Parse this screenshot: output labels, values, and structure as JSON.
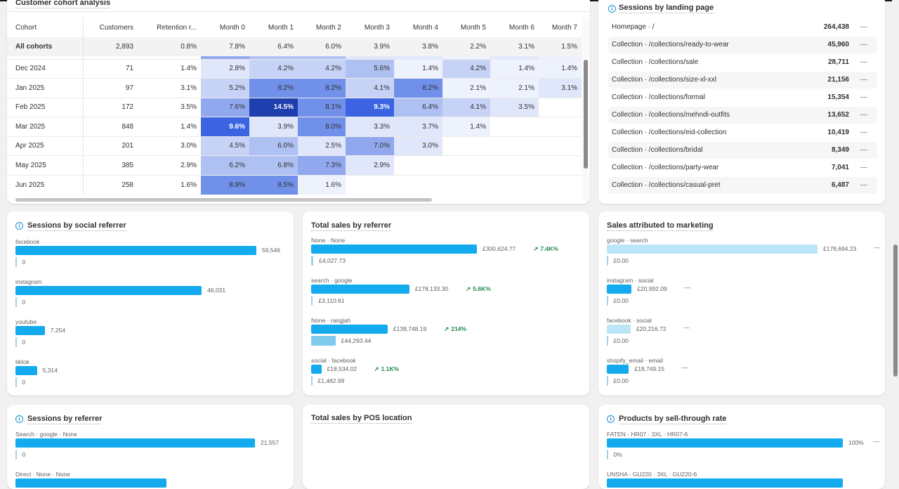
{
  "colors": {
    "bar": "#13aaee",
    "bar_light": "#bde5f8",
    "compare": "#7fcbee",
    "trend_up": "#1f8a4c",
    "heat_max": "#1e3fae"
  },
  "cohort": {
    "title": "Customer cohort analysis",
    "headers": [
      "Cohort",
      "Customers",
      "Retention r...",
      "Month 0",
      "Month 1",
      "Month 2",
      "Month 3",
      "Month 4",
      "Month 5",
      "Month 6",
      "Month 7"
    ],
    "all": [
      "All cohorts",
      "2,893",
      "0.8%",
      "7.8%",
      "6.4%",
      "6.0%",
      "3.9%",
      "3.8%",
      "2.2%",
      "3.1%",
      "1.5%"
    ],
    "rows": [
      [
        "Dec 2024",
        "71",
        "1.4%",
        "2.8%",
        "4.2%",
        "4.2%",
        "5.6%",
        "1.4%",
        "4.2%",
        "1.4%",
        "1.4%"
      ],
      [
        "Jan 2025",
        "97",
        "3.1%",
        "5.2%",
        "8.2%",
        "8.2%",
        "4.1%",
        "8.2%",
        "2.1%",
        "2.1%",
        "3.1%"
      ],
      [
        "Feb 2025",
        "172",
        "3.5%",
        "7.6%",
        "14.5%",
        "8.1%",
        "9.3%",
        "6.4%",
        "4.1%",
        "3.5%",
        ""
      ],
      [
        "Mar 2025",
        "848",
        "1.4%",
        "9.6%",
        "3.9%",
        "8.0%",
        "3.3%",
        "3.7%",
        "1.4%",
        "",
        ""
      ],
      [
        "Apr 2025",
        "201",
        "3.0%",
        "4.5%",
        "6.0%",
        "2.5%",
        "7.0%",
        "3.0%",
        "",
        "",
        ""
      ],
      [
        "May 2025",
        "385",
        "2.9%",
        "6.2%",
        "6.8%",
        "7.3%",
        "2.9%",
        "",
        "",
        "",
        ""
      ],
      [
        "Jun 2025",
        "258",
        "1.6%",
        "8.9%",
        "8.5%",
        "1.6%",
        "",
        "",
        "",
        "",
        ""
      ]
    ]
  },
  "landing": {
    "title": "Sessions by landing page",
    "rows": [
      {
        "label": "Homepage · /",
        "value": "264,438",
        "change": "—"
      },
      {
        "label": "Collection · /collections/ready-to-wear",
        "value": "45,960",
        "change": "—"
      },
      {
        "label": "Collection · /collections/sale",
        "value": "28,711",
        "change": "—"
      },
      {
        "label": "Collection · /collections/size-xl-xxl",
        "value": "21,156",
        "change": "—"
      },
      {
        "label": "Collection · /collections/formal",
        "value": "15,354",
        "change": "—"
      },
      {
        "label": "Collection · /collections/mehndi-outfits",
        "value": "13,652",
        "change": "—"
      },
      {
        "label": "Collection · /collections/eid-collection",
        "value": "10,419",
        "change": "—"
      },
      {
        "label": "Collection · /collections/bridal",
        "value": "8,349",
        "change": "—"
      },
      {
        "label": "Collection · /collections/party-wear",
        "value": "7,041",
        "change": "—"
      },
      {
        "label": "Collection · /collections/casual-pret",
        "value": "6,487",
        "change": "—"
      }
    ]
  },
  "social": {
    "title": "Sessions by social referrer",
    "max": 59546,
    "items": [
      {
        "label": "facebook",
        "value": 59546,
        "value_text": "59,546",
        "compare": 0,
        "compare_text": "0"
      },
      {
        "label": "instagram",
        "value": 46031,
        "value_text": "46,031",
        "compare": 0,
        "compare_text": "0"
      },
      {
        "label": "youtube",
        "value": 7254,
        "value_text": "7,254",
        "compare": 0,
        "compare_text": "0"
      },
      {
        "label": "tiktok",
        "value": 5314,
        "value_text": "5,314",
        "compare": 0,
        "compare_text": "0"
      }
    ]
  },
  "referrer_sales": {
    "title": "Total sales by referrer",
    "max": 300624.77,
    "items": [
      {
        "label": "None · None",
        "value": 300624.77,
        "value_text": "£300,624.77",
        "compare": 4027.73,
        "compare_text": "£4,027.73",
        "trend": "7.4K%"
      },
      {
        "label": "search · google",
        "value": 178133.3,
        "value_text": "£178,133.30",
        "compare": 3110.61,
        "compare_text": "£3,110.61",
        "trend": "5.6K%"
      },
      {
        "label": "None · rangjah",
        "value": 138748.19,
        "value_text": "£138,748.19",
        "compare": 44293.44,
        "compare_text": "£44,293.44",
        "trend": "214%"
      },
      {
        "label": "social · facebook",
        "value": 18534.02,
        "value_text": "£18,534.02",
        "compare": 1482.99,
        "compare_text": "£1,482.99",
        "trend": "1.1K%"
      }
    ]
  },
  "marketing": {
    "title": "Sales attributed to marketing",
    "max": 178694.23,
    "items": [
      {
        "label": "google · search",
        "value": 178694.23,
        "value_text": "£178,694.23",
        "compare": 0,
        "compare_text": "£0.00",
        "change": "—",
        "light": true
      },
      {
        "label": "instagram · social",
        "value": 20992.09,
        "value_text": "£20,992.09",
        "compare": 0,
        "compare_text": "£0.00",
        "change": "—"
      },
      {
        "label": "facebook · social",
        "value": 20216.72,
        "value_text": "£20,216.72",
        "compare": 0,
        "compare_text": "£0.00",
        "change": "—",
        "light": true
      },
      {
        "label": "shopify_email · email",
        "value": 18749.15,
        "value_text": "£18,749.15",
        "compare": 0,
        "compare_text": "£0.00",
        "change": "—"
      }
    ]
  },
  "sessions_ref": {
    "title": "Sessions by referrer",
    "max": 21557,
    "items": [
      {
        "label": "Search · google · None",
        "value": 21557,
        "value_text": "21,557",
        "compare": 0,
        "compare_text": "0"
      },
      {
        "label": "Direct · None · None",
        "value": 13600
      }
    ]
  },
  "pos": {
    "title": "Total sales by POS location"
  },
  "sellthrough": {
    "title": "Products by sell-through rate",
    "max": 100,
    "items": [
      {
        "label": "FATEN - HR07 · 3XL · HR07-6",
        "value": 100,
        "value_text": "100%",
        "compare": 0,
        "compare_text": "0%",
        "change": "—"
      },
      {
        "label": "UNSHA - GU220 · 3XL · GU220-6",
        "value": 100
      }
    ]
  }
}
